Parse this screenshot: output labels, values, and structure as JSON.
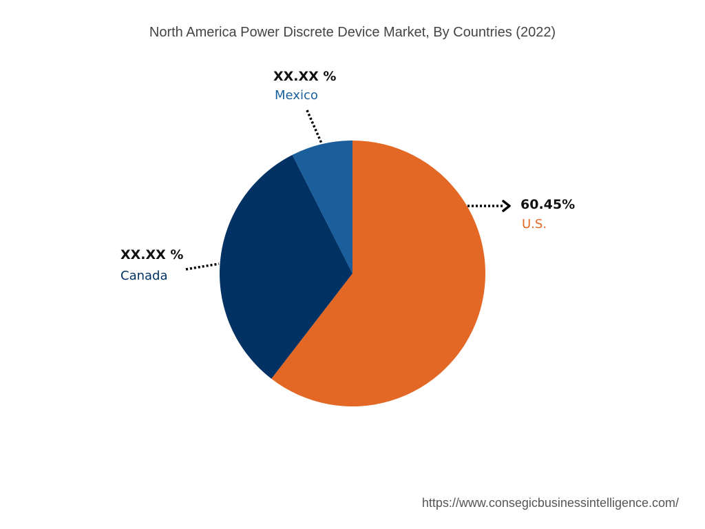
{
  "chart_data": {
    "type": "pie",
    "title": "North America Power Discrete Device Market, By Countries (2022)",
    "slices": [
      {
        "name": "U.S.",
        "value": 60.45,
        "label": "60.45%",
        "color": "#e36725"
      },
      {
        "name": "Canada",
        "value": 32.07,
        "label": "XX.XX %",
        "color": "#023263"
      },
      {
        "name": "Mexico",
        "value": 7.48,
        "label": "XX.XX %",
        "color": "#1a5f9c"
      }
    ]
  },
  "source_url": "https://www.consegicbusinessintelligence.com/"
}
